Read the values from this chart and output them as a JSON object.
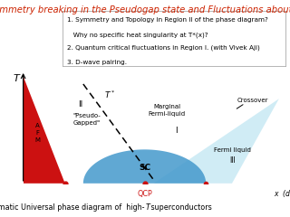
{
  "title": "Symmetry breaking in the Pseudogap state and Fluctuations about it",
  "title_color": "#cc2200",
  "title_fontsize": 7.2,
  "bullet_lines": [
    "1. Symmetry and Topology in Region II of the phase diagram?",
    "   Why no specific heat singularity at T*(x)?",
    "2. Quantum critical fluctuations in Region I. (with Vivek Aji)",
    "3. D-wave pairing."
  ],
  "bullet_fontsize": 5.2,
  "caption_pre": "Schematic Universal phase diagram of  high-",
  "caption_T": "T",
  "caption_post": " superconductors",
  "caption_fontsize": 5.8,
  "background_color": "#ffffff",
  "afm_color": "#cc1111",
  "sc_color": "#4499cc",
  "wedge_color": "#aaddee",
  "dot_color": "#cc1111"
}
